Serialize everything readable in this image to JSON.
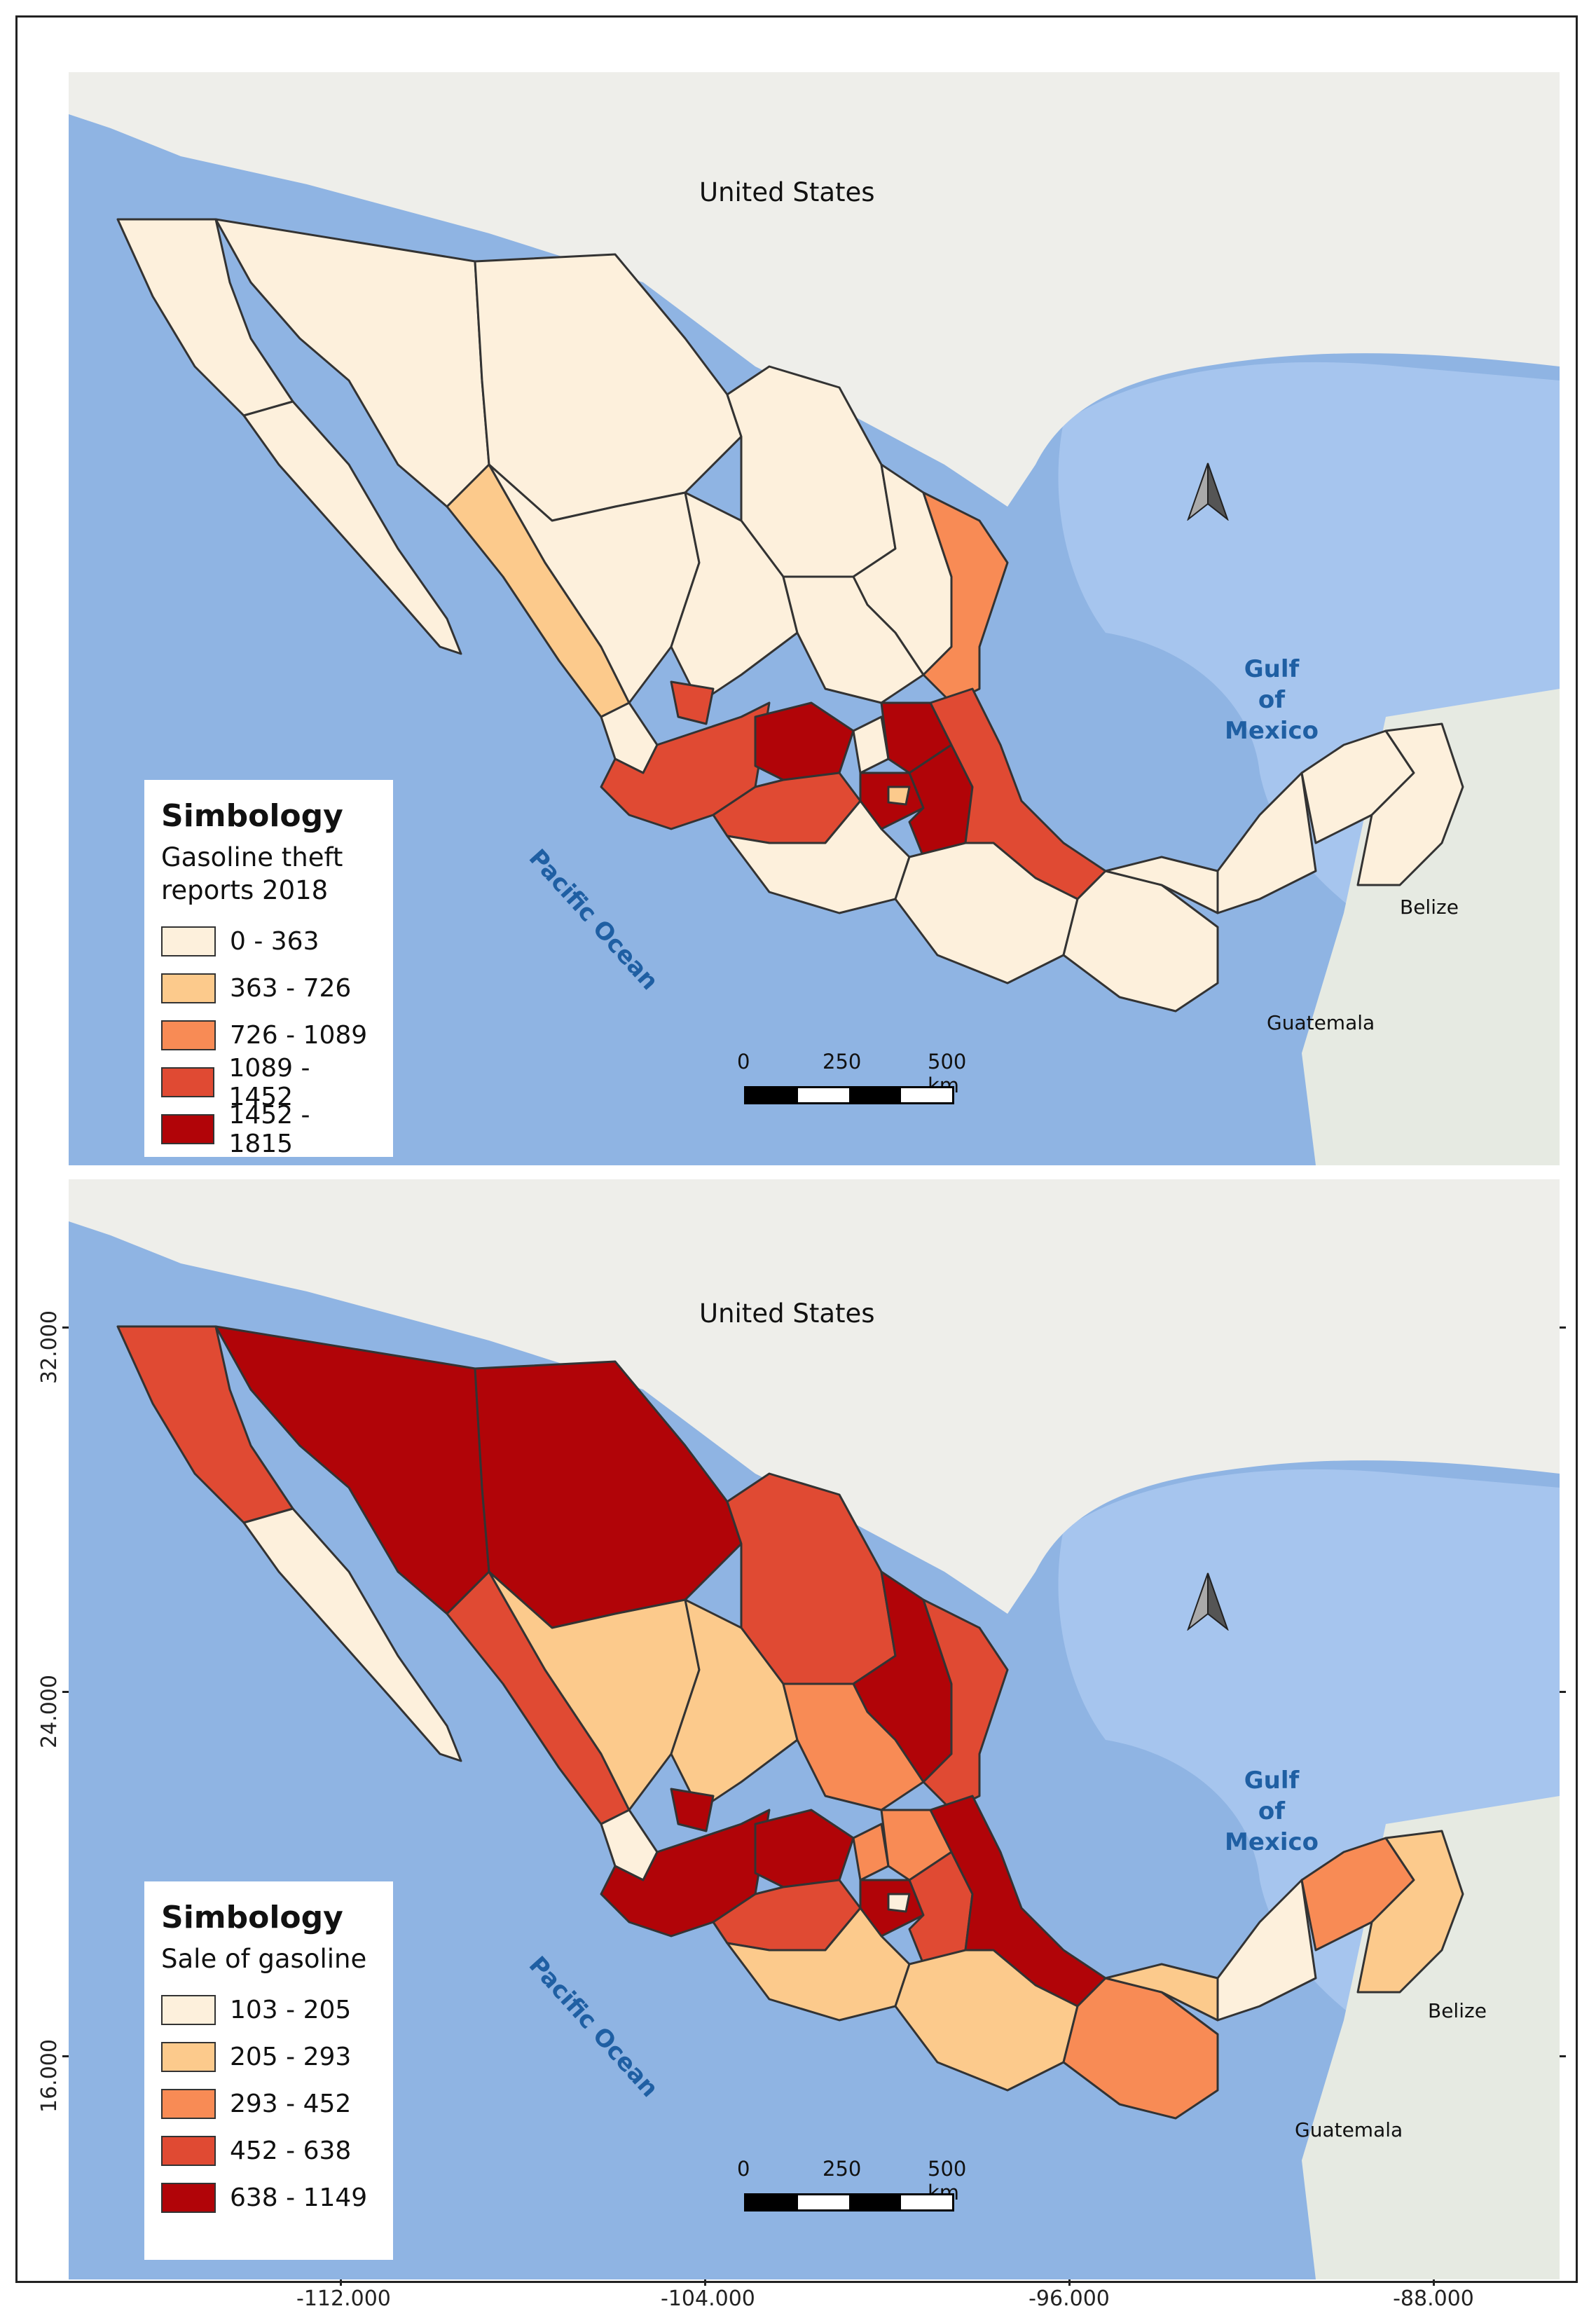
{
  "panels": [
    {
      "id": "gasoline-theft",
      "labels": {
        "country_us": "United States",
        "gulf_line1": "Gulf",
        "gulf_line2": "of",
        "gulf_line3": "Mexico",
        "pacific": "Pacific Ocean",
        "belize": "Belize",
        "guatemala": "Guatemala"
      },
      "legend": {
        "title": "Simbology",
        "subtitle": "Gasoline theft reports 2018",
        "classes": [
          {
            "label": "0 - 363",
            "color": "#fdf0dc"
          },
          {
            "label": "363 - 726",
            "color": "#fcca8c"
          },
          {
            "label": "726 - 1089",
            "color": "#f88b55"
          },
          {
            "label": "1089 - 1452",
            "color": "#e04a33"
          },
          {
            "label": "1452 - 1815",
            "color": "#b10408"
          }
        ]
      },
      "scale": {
        "tick0": "0",
        "tick1": "250",
        "tick2": "500 km"
      }
    },
    {
      "id": "sale-of-gasoline",
      "labels": {
        "country_us": "United States",
        "gulf_line1": "Gulf",
        "gulf_line2": "of",
        "gulf_line3": "Mexico",
        "pacific": "Pacific Ocean",
        "belize": "Belize",
        "guatemala": "Guatemala"
      },
      "legend": {
        "title": "Simbology",
        "subtitle": "Sale of gasoline",
        "classes": [
          {
            "label": "103 - 205",
            "color": "#fdf0dc"
          },
          {
            "label": "205 - 293",
            "color": "#fcca8c"
          },
          {
            "label": "293 - 452",
            "color": "#f88b55"
          },
          {
            "label": "452 - 638",
            "color": "#e04a33"
          },
          {
            "label": "638 - 1149",
            "color": "#b10408"
          }
        ]
      },
      "scale": {
        "tick0": "0",
        "tick1": "250",
        "tick2": "500 km"
      }
    }
  ],
  "axes": {
    "x_ticks": [
      "-112.000",
      "-104.000",
      "-96.000",
      "-88.000"
    ],
    "y_ticks": [
      "32.000",
      "24.000",
      "16.000"
    ]
  },
  "colors": {
    "land": "#eeeeea",
    "ocean": "#8fb4e3",
    "shelf": "#b7cfee",
    "class1": "#fdf0dc",
    "class2": "#fcca8c",
    "class3": "#f88b55",
    "class4": "#e04a33",
    "class5": "#b10408"
  }
}
